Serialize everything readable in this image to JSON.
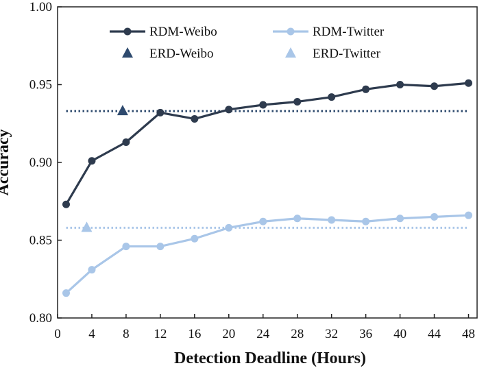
{
  "chart_data": {
    "type": "line",
    "xlabel": "Detection Deadline (Hours)",
    "ylabel": "Accuracy",
    "xlim": [
      0,
      49
    ],
    "ylim": [
      0.8,
      1.0
    ],
    "xticks": [
      0,
      4,
      8,
      12,
      16,
      20,
      24,
      28,
      32,
      36,
      40,
      44,
      48
    ],
    "yticks": [
      "0.80",
      "0.85",
      "0.90",
      "0.95",
      "1.00"
    ],
    "grid": false,
    "legend_position": "top",
    "series": [
      {
        "name": "RDM-Weibo",
        "style": "line-circle",
        "color": "#2e3b4e",
        "x": [
          1,
          4,
          8,
          12,
          16,
          20,
          24,
          28,
          32,
          36,
          40,
          44,
          48
        ],
        "y": [
          0.873,
          0.901,
          0.913,
          0.932,
          0.928,
          0.934,
          0.937,
          0.939,
          0.942,
          0.947,
          0.95,
          0.949,
          0.951
        ]
      },
      {
        "name": "RDM-Twitter",
        "style": "line-circle",
        "color": "#a9c6e8",
        "x": [
          1,
          4,
          8,
          12,
          16,
          20,
          24,
          28,
          32,
          36,
          40,
          44,
          48
        ],
        "y": [
          0.816,
          0.831,
          0.846,
          0.846,
          0.851,
          0.858,
          0.862,
          0.864,
          0.863,
          0.862,
          0.864,
          0.865,
          0.866
        ]
      },
      {
        "name": "ERD-Weibo",
        "style": "triangle",
        "color": "#2e4a6e",
        "x": [
          7.6
        ],
        "y": [
          0.933
        ],
        "reference_line_y": 0.933
      },
      {
        "name": "ERD-Twitter",
        "style": "triangle",
        "color": "#a9c6e8",
        "x": [
          3.4
        ],
        "y": [
          0.858
        ],
        "reference_line_y": 0.858
      }
    ]
  }
}
